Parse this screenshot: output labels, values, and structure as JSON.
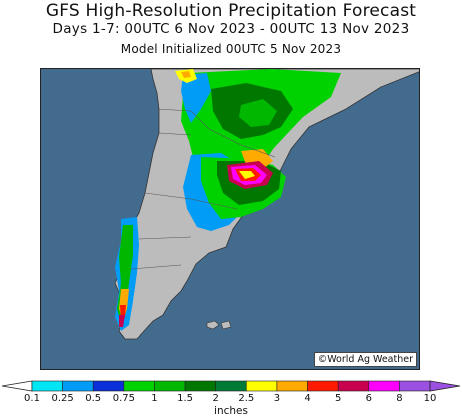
{
  "title": "GFS High-Resolution Precipitation Forecast",
  "subtitle": "Days 1-7: 00UTC 6 Nov 2023 - 00UTC 13 Nov 2023",
  "init_text": "Model Initialized 00UTC 5 Nov 2023",
  "credit": "©World Ag Weather",
  "colors": {
    "ocean": "#436b8e",
    "land_dry": "#bcbcbc",
    "border": "#555555"
  },
  "legend": {
    "units": "inches",
    "thresholds": [
      "0.1",
      "0.25",
      "0.5",
      "0.75",
      "1",
      "1.5",
      "2",
      "2.5",
      "3",
      "4",
      "5",
      "6",
      "8",
      "10"
    ],
    "colors": [
      "#00e6f5",
      "#009cf5",
      "#0a2fd8",
      "#00d200",
      "#00b800",
      "#007800",
      "#007a34",
      "#ffff00",
      "#ffaa00",
      "#ff1a00",
      "#c8004e",
      "#ff00ff",
      "#9a50e0"
    ]
  }
}
